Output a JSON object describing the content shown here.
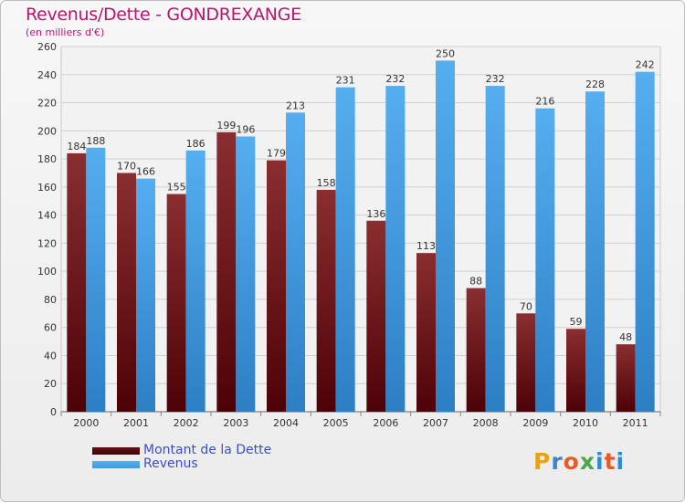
{
  "header": {
    "title": "Revenus/Dette - GONDREXANGE",
    "subtitle": "(en milliers d'€)"
  },
  "legend": [
    {
      "label": "Montant de la Dette",
      "color": "#6a0f16"
    },
    {
      "label": "Revenus",
      "color": "#3c98de"
    }
  ],
  "logo": {
    "text": "Proxiti",
    "letters": [
      {
        "ch": "P",
        "color": "#e8a21a"
      },
      {
        "ch": "r",
        "color": "#3b82d1"
      },
      {
        "ch": "o",
        "color": "#e55b2a"
      },
      {
        "ch": "x",
        "color": "#4aa84a"
      },
      {
        "ch": "i",
        "color": "#2f8bd6"
      },
      {
        "ch": "t",
        "color": "#e55b2a"
      },
      {
        "ch": "i",
        "color": "#2f8bd6"
      }
    ]
  },
  "chart_data": {
    "type": "bar",
    "title": "Revenus/Dette - GONDREXANGE",
    "subtitle": "(en milliers d'€)",
    "categories": [
      "2000",
      "2001",
      "2002",
      "2003",
      "2004",
      "2005",
      "2006",
      "2007",
      "2008",
      "2009",
      "2010",
      "2011"
    ],
    "series": [
      {
        "name": "Montant de la Dette",
        "values": [
          184,
          170,
          155,
          199,
          179,
          158,
          136,
          113,
          88,
          70,
          59,
          48
        ]
      },
      {
        "name": "Revenus",
        "values": [
          188,
          166,
          186,
          196,
          213,
          231,
          232,
          250,
          232,
          216,
          228,
          242
        ]
      }
    ],
    "ylim": [
      0,
      260
    ],
    "yticks": [
      0,
      20,
      40,
      60,
      80,
      100,
      120,
      140,
      160,
      180,
      200,
      220,
      240,
      260
    ],
    "grid": true,
    "legend_position": "bottom-left"
  }
}
